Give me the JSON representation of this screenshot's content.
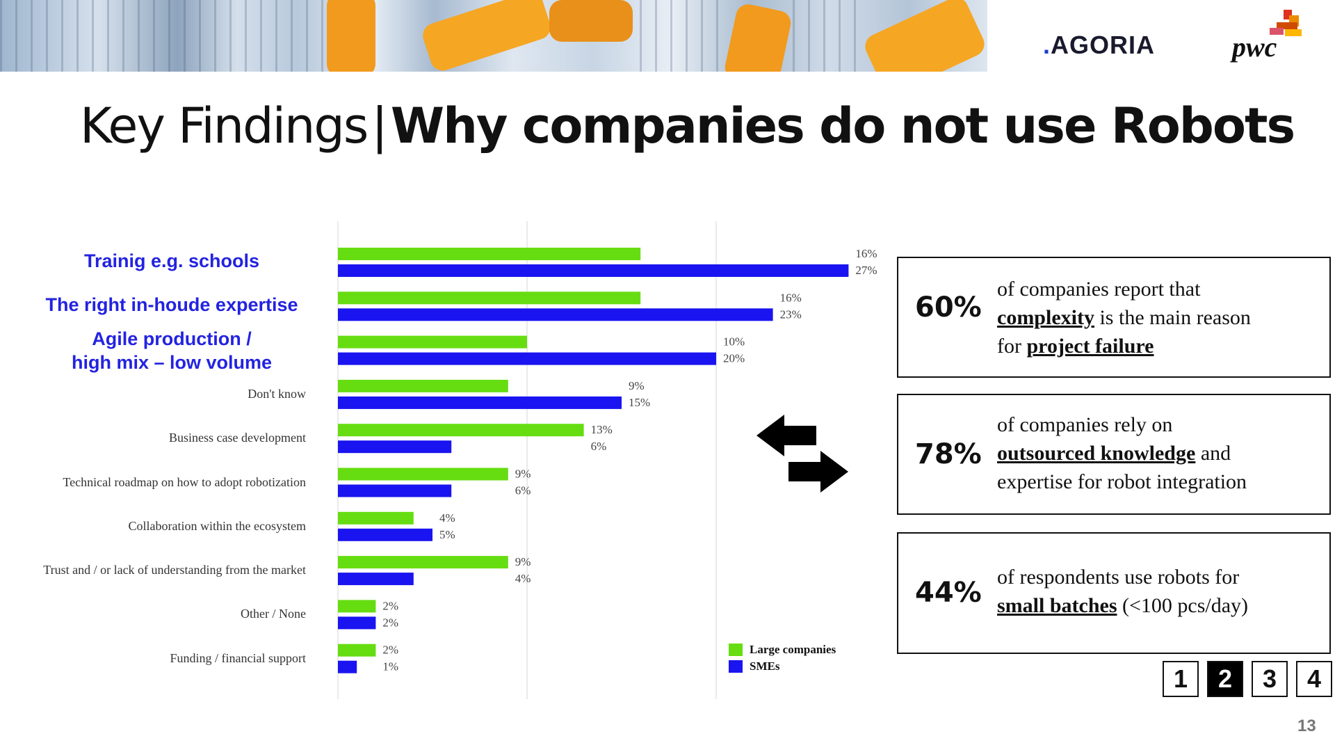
{
  "header": {
    "logo_agoria_dot": ".",
    "logo_agoria_text": "AGORIA",
    "logo_pwc": "pwc"
  },
  "title": {
    "part1": "Key Findings",
    "separator": "|",
    "part2": "Why companies do not use Robots"
  },
  "colors": {
    "large_companies": "#66dd11",
    "smes": "#1a14f0",
    "highlight_label": "#2323e0"
  },
  "chart_data": {
    "type": "bar",
    "orientation": "horizontal",
    "categories": [
      "Trainig e.g. schools",
      "The right in-houde expertise",
      "Agile production / high mix – low volume",
      "Don't know",
      "Business case development",
      "Technical roadmap on how to adopt robotization",
      "Collaboration within the ecosystem",
      "Trust and / or lack of understanding from the market",
      "Other / None",
      "Funding / financial support"
    ],
    "highlighted_categories": [
      0,
      1,
      2
    ],
    "series": [
      {
        "name": "Large companies",
        "values": [
          16,
          16,
          10,
          9,
          13,
          9,
          4,
          9,
          2,
          2
        ]
      },
      {
        "name": "SMEs",
        "values": [
          27,
          23,
          20,
          15,
          6,
          6,
          5,
          4,
          2,
          1
        ]
      }
    ],
    "value_suffix": "%",
    "xlim": [
      0,
      30
    ],
    "grid": true,
    "legend_position": "bottom-right"
  },
  "key_facts": [
    {
      "pct": "60%",
      "line1": "of companies report that",
      "line2_em": "complexity",
      "line2_rest": " is the main reason",
      "line3_pre": "for ",
      "line3_em": "project failure"
    },
    {
      "pct": "78%",
      "line1": "of companies rely on",
      "line2_em": "outsourced knowledge",
      "line2_rest": " and",
      "line3_pre": "expertise for robot integration",
      "line3_em": ""
    },
    {
      "pct": "44%",
      "line1": "of respondents use robots for",
      "line2_em": "small batches",
      "line2_rest": " (<100 pcs/day)"
    }
  ],
  "pager": {
    "pages": [
      "1",
      "2",
      "3",
      "4"
    ],
    "active": "2"
  },
  "page_number": "13"
}
